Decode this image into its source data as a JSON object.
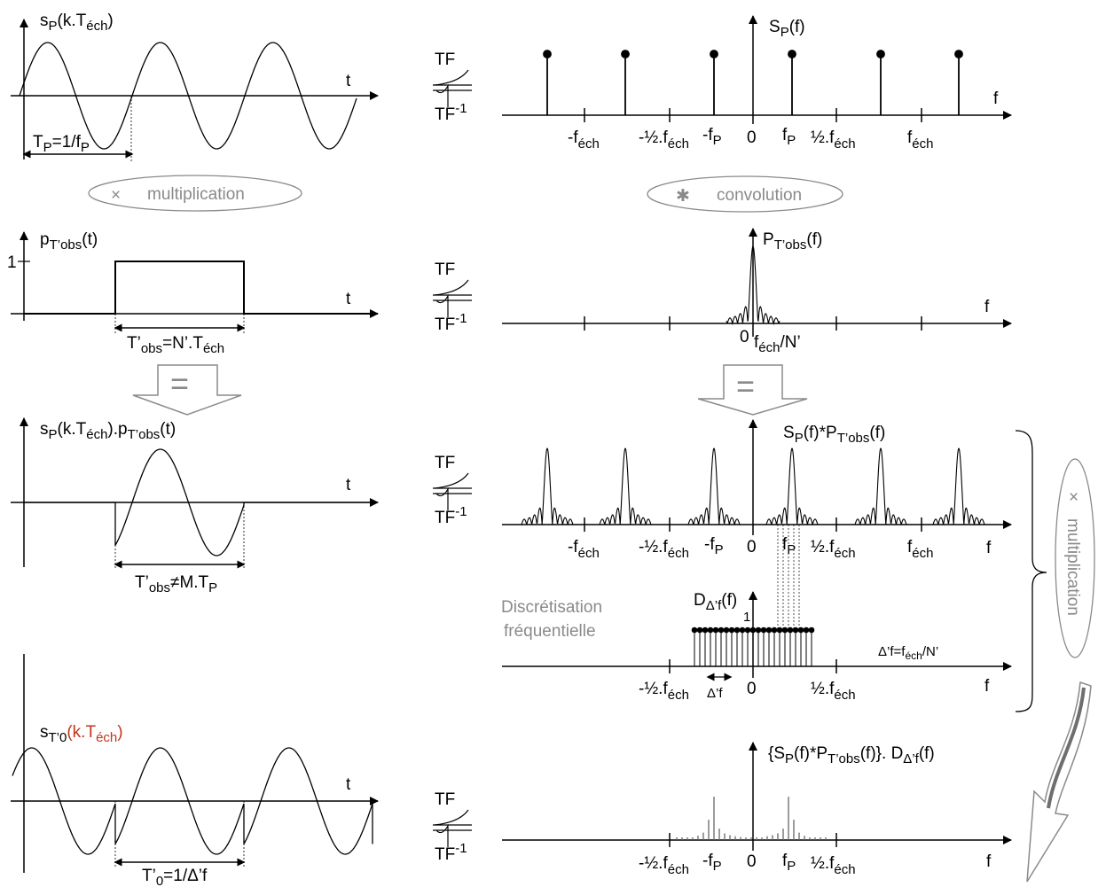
{
  "tf": {
    "top": "TF",
    "bottom_base": "TF",
    "bottom_exp": "-1"
  },
  "ops": {
    "multiplication": "multiplication",
    "convolution": "convolution",
    "times_symbol": "×",
    "conv_symbol": "✱",
    "equals_symbol": "="
  },
  "axes": {
    "t": "t",
    "f": "f",
    "zero": "0",
    "one": "1"
  },
  "row1": {
    "time_label": {
      "base": "s",
      "sub": "P",
      "mid": "(k.T",
      "sub2": "éch",
      "tail": ")"
    },
    "period": {
      "base": "T",
      "sub": "P",
      "mid": "=1/f",
      "sub2": "P"
    },
    "freq_label": {
      "base": "S",
      "sub": "P",
      "tail": "(f)"
    },
    "ticks": {
      "m_fech": "-f",
      "fech_sub": "éch",
      "m_half": "-½.f",
      "m_fp": "-f",
      "fp_sub": "P",
      "fp": "f",
      "half": "½.f",
      "fech": "f"
    }
  },
  "row2": {
    "time_label": {
      "base": "p",
      "sub": "T’obs",
      "tail": "(t)"
    },
    "tobs": {
      "base": "T’",
      "sub": "obs",
      "mid": "=N’.T",
      "sub2": "éch"
    },
    "freq_label": {
      "base": "P",
      "sub": "T’obs",
      "tail": "(f)"
    },
    "res": {
      "base": "f",
      "sub": "éch",
      "tail": "/N’"
    }
  },
  "row3": {
    "time_label": {
      "base": "s",
      "sub": "P",
      "mid": "(k.T",
      "sub2": "éch",
      "mid2": ").p",
      "sub3": "T’obs",
      "tail": "(t)"
    },
    "tobs": {
      "base": "T’",
      "sub": "obs",
      "mid": "≠M.T",
      "sub2": "P"
    },
    "freq_label": {
      "base": "S",
      "sub": "P",
      "mid": "(f)*P",
      "sub2": "T’obs",
      "tail": "(f)"
    }
  },
  "row4": {
    "caption_line1": "Discrétisation",
    "caption_line2": "fréquentielle",
    "freq_label": {
      "base": "D",
      "sub": "Δ’f",
      "tail": "(f)"
    },
    "delta": {
      "base": "Δ’f=f",
      "sub": "éch",
      "tail": "/N’"
    },
    "delta_tick": "Δ’f"
  },
  "row5": {
    "time_label": {
      "base": "s",
      "sub": "T’0",
      "red1": "(k.T",
      "red_sub": "éch",
      "red2": ")"
    },
    "t0": {
      "base": "T’",
      "sub": "0",
      "tail": "=1/Δ’f"
    },
    "freq_label": {
      "text1": "{S",
      "sub1": "P",
      "text2": "(f)*P",
      "sub2": "T’obs",
      "text3": "(f)}. D",
      "sub3": "Δ’f",
      "text4": "(f)"
    }
  },
  "colors": {
    "line": "#000000",
    "grey": "#8a8a8a",
    "red": "#c0361a"
  },
  "signal": {
    "sine_periods_top": 3,
    "t0_description": "periodized truncated sine"
  }
}
